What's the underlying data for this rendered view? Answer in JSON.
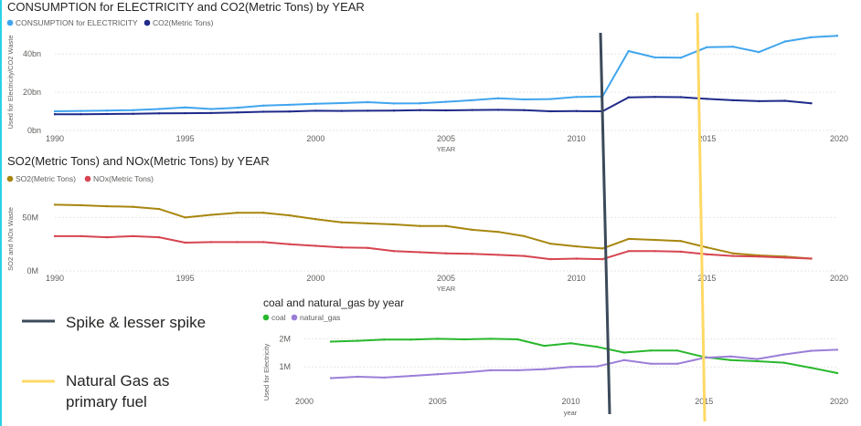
{
  "chart_data": [
    {
      "type": "line",
      "title": "CONSUMPTION for ELECTRICITY and CO2(Metric Tons) by YEAR",
      "xlabel": "YEAR",
      "ylabel": "Used for Electricity/CO2 Waste",
      "xlim": [
        1990,
        2020
      ],
      "ylim": [
        0,
        52
      ],
      "xticks": [
        "1990",
        "1995",
        "2000",
        "2005",
        "2010",
        "2015",
        "2020"
      ],
      "yticks": [
        {
          "value": 0,
          "label": "0bn"
        },
        {
          "value": 20,
          "label": "20bn"
        },
        {
          "value": 40,
          "label": "40bn"
        }
      ],
      "legend_position": "top-left",
      "grid": true,
      "x": [
        1990,
        1991,
        1992,
        1993,
        1994,
        1995,
        1996,
        1997,
        1998,
        1999,
        2000,
        2001,
        2002,
        2003,
        2004,
        2005,
        2006,
        2007,
        2008,
        2009,
        2010,
        2011,
        2012,
        2013,
        2014,
        2015,
        2016,
        2017,
        2018,
        2019,
        2020
      ],
      "series": [
        {
          "name": "CONSUMPTION for ELECTRICITY",
          "color": "#41a5ee",
          "values": [
            10,
            10.2,
            10.4,
            10.6,
            11.2,
            12,
            11.2,
            11.9,
            13,
            13.4,
            14,
            14.3,
            14.8,
            14.1,
            14.2,
            15,
            15.8,
            16.8,
            16.2,
            16.4,
            17.5,
            17.8,
            41.5,
            38.2,
            38,
            43.5,
            43.8,
            41,
            46.5,
            48.7,
            49.5
          ]
        },
        {
          "name": "CO2(Metric Tons)",
          "color": "#1f2a8a",
          "values": [
            8.5,
            8.5,
            8.6,
            8.7,
            8.9,
            9,
            9.1,
            9.4,
            9.8,
            9.9,
            10.3,
            10.2,
            10.3,
            10.4,
            10.6,
            10.5,
            10.7,
            10.8,
            10.6,
            10,
            10.1,
            10,
            17.3,
            17.5,
            17.4,
            16.5,
            15.8,
            15.3,
            15.5,
            14.2,
            null
          ]
        }
      ]
    },
    {
      "type": "line",
      "title": "SO2(Metric Tons) and NOx(Metric Tons) by YEAR",
      "xlabel": "YEAR",
      "ylabel": "SO2 and NOx Waste",
      "xlim": [
        1990,
        2020
      ],
      "ylim": [
        0,
        70
      ],
      "xticks": [
        "1990",
        "1995",
        "2000",
        "2005",
        "2010",
        "2015",
        "2020"
      ],
      "yticks": [
        {
          "value": 0,
          "label": "0M"
        },
        {
          "value": 50,
          "label": "50M"
        }
      ],
      "legend_position": "top-left",
      "grid": true,
      "x": [
        1990,
        1991,
        1992,
        1993,
        1994,
        1995,
        1996,
        1997,
        1998,
        1999,
        2000,
        2001,
        2002,
        2003,
        2004,
        2005,
        2006,
        2007,
        2008,
        2009,
        2010,
        2011,
        2012,
        2013,
        2014,
        2015,
        2016,
        2017,
        2018,
        2019
      ],
      "series": [
        {
          "name": "SO2(Metric Tons)",
          "color": "#a8860f",
          "values": [
            62,
            61.5,
            60.5,
            60,
            58,
            50,
            52.5,
            54.5,
            54.5,
            52,
            48.5,
            45.5,
            44.5,
            43.5,
            42,
            42,
            38.5,
            36.5,
            32.5,
            25.5,
            23,
            21,
            30,
            29,
            28,
            22,
            16.5,
            14.5,
            13.5,
            11.5
          ]
        },
        {
          "name": "NOx(Metric Tons)",
          "color": "#d64550",
          "values": [
            32.5,
            32.5,
            31.5,
            32.5,
            31.5,
            26.5,
            27,
            27,
            27,
            25,
            23.5,
            22,
            21.5,
            18.5,
            17.5,
            16.5,
            16,
            15,
            14,
            11,
            11.5,
            11,
            18.5,
            18.5,
            18,
            15.5,
            14,
            13.5,
            12.5,
            11.5
          ]
        }
      ]
    },
    {
      "type": "line",
      "title": "coal and natural_gas by year",
      "xlabel": "year",
      "ylabel": "Used for Electricity",
      "xlim": [
        2000,
        2020
      ],
      "ylim": [
        0,
        2.5
      ],
      "xticks": [
        "2000",
        "2005",
        "2010",
        "2015",
        "2020"
      ],
      "yticks": [
        {
          "value": 1,
          "label": "1M"
        },
        {
          "value": 2,
          "label": "2M"
        }
      ],
      "legend_position": "top-left",
      "grid": true,
      "x": [
        2001,
        2002,
        2003,
        2004,
        2005,
        2006,
        2007,
        2008,
        2009,
        2010,
        2011,
        2012,
        2013,
        2014,
        2015,
        2016,
        2017,
        2018,
        2019,
        2020
      ],
      "series": [
        {
          "name": "coal",
          "color": "#28b82d",
          "values": [
            1.9,
            1.93,
            1.97,
            1.97,
            2.0,
            1.98,
            2.0,
            1.98,
            1.75,
            1.84,
            1.71,
            1.51,
            1.58,
            1.58,
            1.35,
            1.24,
            1.2,
            1.15,
            0.97,
            0.78
          ]
        },
        {
          "name": "natural_gas",
          "color": "#9b7ed8",
          "values": [
            0.6,
            0.65,
            0.62,
            0.68,
            0.74,
            0.8,
            0.88,
            0.88,
            0.92,
            1.0,
            1.02,
            1.24,
            1.11,
            1.11,
            1.32,
            1.37,
            1.28,
            1.44,
            1.57,
            1.61
          ]
        }
      ]
    }
  ],
  "annotations": {
    "dark_line_label": "Spike & lesser spike",
    "dark_line_color": "#3b4a5a",
    "yellow_line_label": "Natural Gas as primary fuel",
    "yellow_line_label_lines": [
      "Natural Gas as",
      "primary fuel"
    ],
    "yellow_line_color": "#ffd966"
  }
}
